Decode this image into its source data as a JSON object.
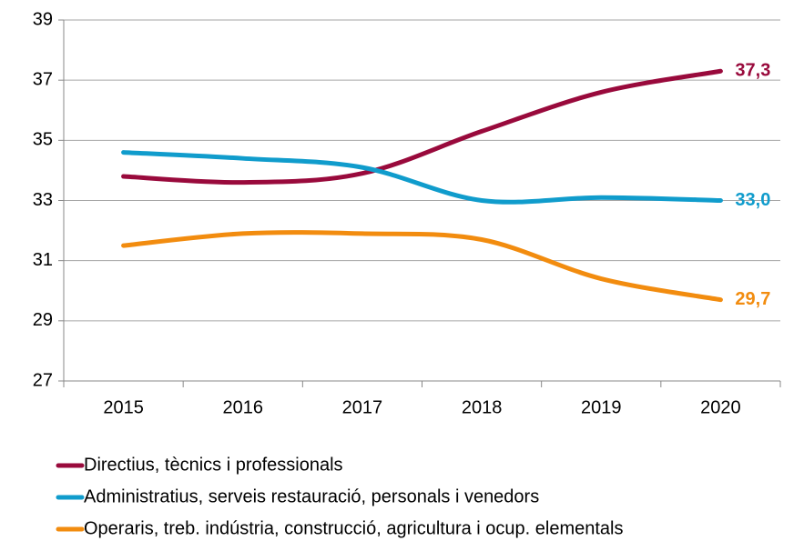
{
  "chart_data": {
    "type": "line",
    "categories": [
      "2015",
      "2016",
      "2017",
      "2018",
      "2019",
      "2020"
    ],
    "series": [
      {
        "name": "Directius, tècnics i professionals",
        "color": "#990a3c",
        "values": [
          33.8,
          33.6,
          33.9,
          35.3,
          36.6,
          37.3
        ],
        "value_labels": [
          null,
          null,
          null,
          null,
          null,
          "37,3"
        ]
      },
      {
        "name": "Administratius, serveis restauració, personals i venedors",
        "color": "#109ccc",
        "values": [
          34.6,
          34.4,
          34.1,
          33.0,
          33.1,
          33.0
        ],
        "value_labels": [
          null,
          null,
          null,
          null,
          null,
          "33,0"
        ]
      },
      {
        "name": "Operaris, treb. indústria, construcció, agricultura i ocup. elementals",
        "color": "#f28c0f",
        "values": [
          31.5,
          31.9,
          31.9,
          31.7,
          30.4,
          29.7
        ],
        "value_labels": [
          null,
          null,
          null,
          null,
          null,
          "29,7"
        ]
      }
    ],
    "ylim": [
      27,
      39
    ],
    "yticks": [
      27,
      29,
      31,
      33,
      35,
      37,
      39
    ],
    "grid": true,
    "legend": "bottom"
  }
}
